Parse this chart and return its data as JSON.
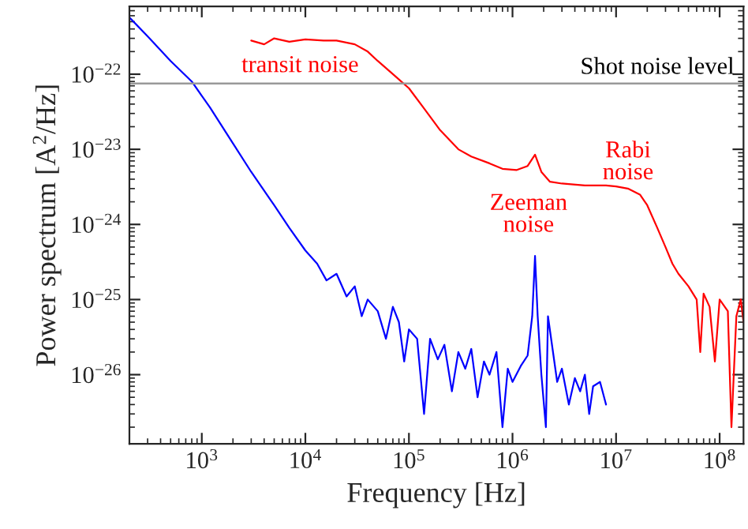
{
  "chart_data": {
    "type": "line",
    "xlabel": "Frequency [Hz]",
    "ylabel": "Power spectrum [A$^{2}$/Hz]",
    "log": "xy",
    "grid": false,
    "legend": false,
    "xlim": [
      200,
      170000000.0
    ],
    "ylim": [
      1.2e-27,
      8e-22
    ],
    "xticks": [
      {
        "value": 1000.0,
        "label": "10$^{3}$"
      },
      {
        "value": 10000.0,
        "label": "10$^{4}$"
      },
      {
        "value": 100000.0,
        "label": "10$^{5}$"
      },
      {
        "value": 1000000.0,
        "label": "10$^{6}$"
      },
      {
        "value": 10000000.0,
        "label": "10$^{7}$"
      },
      {
        "value": 100000000.0,
        "label": "10$^{8}$"
      }
    ],
    "yticks": [
      {
        "value": 1e-26,
        "label": "10$^{−26}$"
      },
      {
        "value": 1e-25,
        "label": "10$^{−25}$"
      },
      {
        "value": 1e-24,
        "label": "10$^{−24}$"
      },
      {
        "value": 1e-23,
        "label": "10$^{−23}$"
      },
      {
        "value": 1e-22,
        "label": "10$^{−22}$"
      }
    ],
    "series": [
      {
        "color": "#0000ff",
        "x": [
          200,
          300,
          500,
          800,
          1200,
          2000,
          3000,
          5000,
          7000,
          10000,
          13000,
          16000,
          20000,
          25000,
          30000,
          35000,
          40000,
          50000,
          60000,
          70000,
          80000,
          90000,
          100000,
          120000,
          140000,
          160000,
          190000,
          220000,
          260000,
          300000,
          350000,
          400000,
          460000,
          530000,
          600000,
          700000,
          800000,
          900000,
          1000000,
          1200000,
          1400000,
          1550000,
          1650000,
          1750000,
          1900000,
          2100000,
          2200000,
          2700000,
          3000000,
          3500000,
          4000000,
          4500000,
          5000000,
          5500000,
          6000000,
          7000000,
          8000000
        ],
        "values": [
          5.7e-22,
          3.2e-22,
          1.5e-22,
          8e-23,
          3.6e-23,
          1.2e-23,
          5e-24,
          1.8e-24,
          9e-25,
          4.5e-25,
          3e-25,
          1.8e-25,
          2.2e-25,
          1.1e-25,
          1.5e-25,
          6e-26,
          1e-25,
          7e-26,
          3e-26,
          8e-26,
          5e-26,
          1.5e-26,
          4e-26,
          3e-26,
          3e-27,
          3e-26,
          1.6e-26,
          2.5e-26,
          6e-27,
          2e-26,
          1.2e-26,
          2.2e-26,
          5e-27,
          1.5e-26,
          1e-26,
          2e-26,
          2e-27,
          1.2e-26,
          8e-27,
          1.3e-26,
          1.8e-26,
          6e-26,
          3.8e-25,
          6e-26,
          1e-26,
          2e-27,
          6e-26,
          8e-27,
          1.2e-26,
          4e-27,
          9e-27,
          6e-27,
          1e-26,
          3e-27,
          7e-27,
          8e-27,
          4e-27
        ]
      },
      {
        "color": "#ff0000",
        "x": [
          3000,
          4000,
          5000,
          7000,
          10000,
          15000,
          20000,
          30000,
          40000,
          50000,
          70000,
          100000,
          140000,
          200000,
          300000,
          400000,
          600000,
          800000,
          1100000,
          1400000,
          1650000,
          1900000,
          2300000,
          3000000,
          5000000,
          8000000,
          10000000,
          13000000,
          17000000,
          20000000,
          25000000,
          30000000,
          35000000,
          40000000,
          50000000,
          60000000,
          65000000,
          70000000,
          80000000,
          90000000,
          100000000,
          120000000,
          130000000,
          145000000,
          160000000,
          170000000
        ],
        "values": [
          2.8e-22,
          2.5e-22,
          3e-22,
          2.7e-22,
          2.9e-22,
          2.8e-22,
          2.8e-22,
          2.5e-22,
          2e-22,
          1.5e-22,
          1e-22,
          6.5e-23,
          3.5e-23,
          1.8e-23,
          1e-23,
          8e-24,
          6.5e-24,
          5.5e-24,
          5.3e-24,
          6e-24,
          8.5e-24,
          5e-24,
          3.7e-24,
          3.5e-24,
          3.3e-24,
          3.3e-24,
          3.2e-24,
          3e-24,
          2.5e-24,
          1.8e-24,
          9e-25,
          5e-25,
          3e-25,
          2.2e-25,
          1.5e-25,
          1e-25,
          2e-26,
          1.2e-25,
          8e-26,
          1.5e-26,
          1e-25,
          7e-26,
          2e-27,
          6e-26,
          1e-25,
          5e-26
        ]
      }
    ],
    "ref_lines": [
      {
        "axis": "y",
        "value": 7.5e-23,
        "label": "Shot noise level",
        "color": "#999999"
      }
    ],
    "annotations": [
      "transit noise",
      "Zeeman\nnoise",
      "Rabi\nnoise"
    ]
  }
}
